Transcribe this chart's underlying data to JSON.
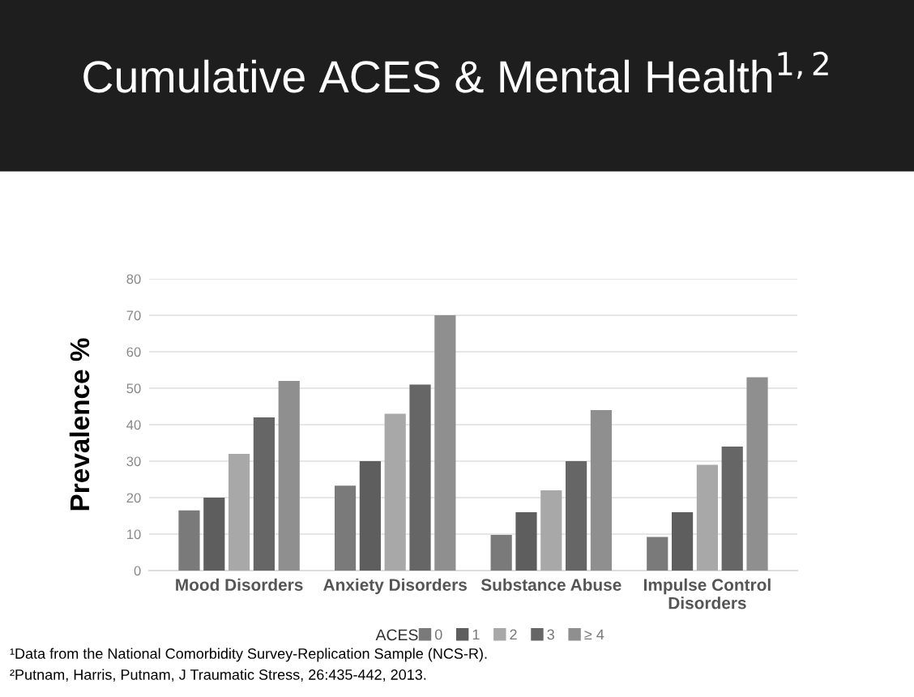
{
  "chart_data": {
    "type": "bar",
    "title": "Cumulative ACES & Mental Health$^{1,2}$",
    "ylabel": "Prevalence %",
    "categories": [
      "Mood Disorders",
      "Anxiety Disorders",
      "Substance Abuse",
      "Impulse Control Disorders"
    ],
    "legend_title": "ACES",
    "series": [
      {
        "name": "0",
        "color": "#7a7a7a",
        "values": [
          16.5,
          23.3,
          9.8,
          9.2
        ]
      },
      {
        "name": "1",
        "color": "#5e5e5e",
        "values": [
          20,
          30,
          16,
          16
        ]
      },
      {
        "name": "2",
        "color": "#a8a8a8",
        "values": [
          32,
          43,
          22,
          29
        ]
      },
      {
        "name": "3",
        "color": "#666666",
        "values": [
          42,
          51,
          30,
          34
        ]
      },
      {
        "name": "≥ 4",
        "color": "#8f8f8f",
        "values": [
          52,
          70,
          44,
          53
        ]
      }
    ],
    "ylim": [
      0,
      80
    ],
    "yticks": [
      0,
      10,
      20,
      30,
      40,
      50,
      60,
      70,
      80
    ],
    "grid": "y",
    "legend": "bottom",
    "annotations": [
      "¹Data from the National Comorbidity Survey-Replication Sample (NCS-R).",
      "²Putnam, Harris, Putnam, J Traumatic Stress, 26:435-442, 2013."
    ]
  }
}
